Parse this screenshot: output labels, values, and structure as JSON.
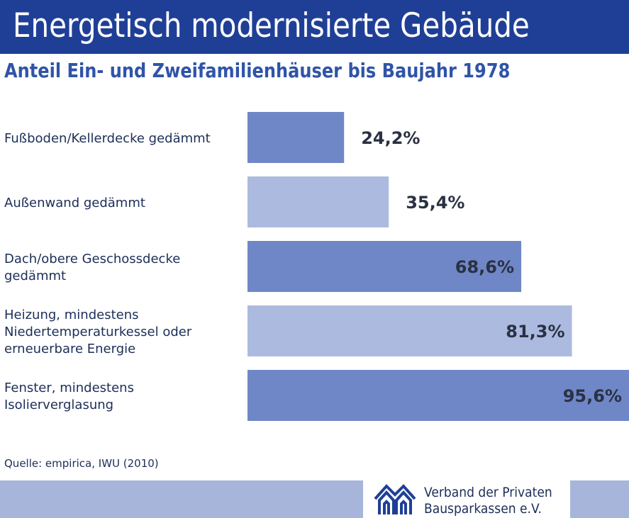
{
  "header": {
    "title": "Energetisch modernisierte Gebäude",
    "subtitle": "Anteil Ein- und Zweifamilienhäuser bis Baujahr 1978"
  },
  "chart_data": {
    "type": "bar",
    "orientation": "horizontal",
    "title": "Energetisch modernisierte Gebäude",
    "subtitle": "Anteil Ein- und Zweifamilienhäuser bis Baujahr 1978",
    "categories": [
      "Fußboden/Kellerdecke gedämmt",
      "Außenwand gedämmt",
      "Dach/obere Geschossdecke\ngedämmt",
      "Heizung, mindestens\nNiedertemperaturkessel oder\nerneuerbare Energie",
      "Fenster, mindestens\nIsolierverglasung"
    ],
    "values": [
      24.2,
      35.4,
      68.6,
      81.3,
      95.6
    ],
    "value_labels": [
      "24,2%",
      "35,4%",
      "68,6%",
      "81,3%",
      "95,6%"
    ],
    "unit": "%",
    "xlim": [
      0,
      95.6
    ],
    "grid": false,
    "colors": [
      "#6f87c7",
      "#adbae0",
      "#6f87c7",
      "#adbae0",
      "#6f87c7"
    ]
  },
  "footer": {
    "source": "Quelle: empirica, IWU (2010)",
    "org_line1": "Verband der Privaten",
    "org_line2": "Bausparkassen e.V.",
    "logo_icon": "house-logo-icon",
    "band_color": "#a8b5db"
  }
}
